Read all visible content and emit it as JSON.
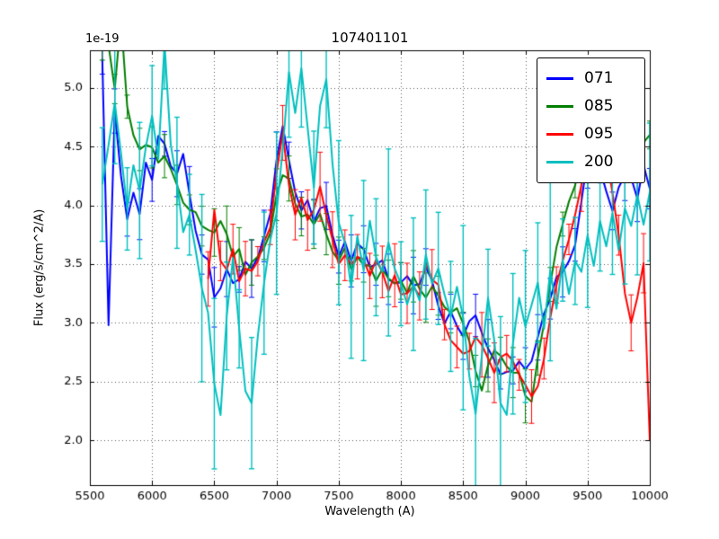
{
  "chart_data": {
    "type": "line",
    "title": "107401101",
    "xlabel": "Wavelength (A)",
    "ylabel": "Flux (erg/s/cm^2/A)",
    "offset_label": "1e-19",
    "xlim": [
      5500,
      10000
    ],
    "ylim": [
      1.62,
      5.32
    ],
    "xticks": [
      "5500",
      "6000",
      "6500",
      "7000",
      "7500",
      "8000",
      "8500",
      "9000",
      "9500",
      "10000"
    ],
    "yticks": [
      "2.0",
      "2.5",
      "3.0",
      "3.5",
      "4.0",
      "4.5",
      "5.0"
    ],
    "grid": true,
    "grid_style": "dotted",
    "legend_position": "upper right",
    "x_step": 50,
    "series": [
      {
        "name": "071",
        "color": "#0000ff",
        "x_start": 5600,
        "err": 0.17,
        "jitter": 0.1,
        "values": [
          5.2,
          2.95,
          4.85,
          4.3,
          3.85,
          4.15,
          3.95,
          4.4,
          4.2,
          4.6,
          4.5,
          4.3,
          4.25,
          4.4,
          4.1,
          3.75,
          3.6,
          3.5,
          3.2,
          3.25,
          3.45,
          3.3,
          3.4,
          3.55,
          3.45,
          3.6,
          3.7,
          3.9,
          4.35,
          4.7,
          4.4,
          4.1,
          3.95,
          4.05,
          3.9,
          4.0,
          3.95,
          3.7,
          3.6,
          3.65,
          3.55,
          3.7,
          3.6,
          3.5,
          3.45,
          3.5,
          3.4,
          3.35,
          3.3,
          3.4,
          3.35,
          3.3,
          3.45,
          3.35,
          3.1,
          3.0,
          3.1,
          3.0,
          2.9,
          3.0,
          3.05,
          2.9,
          2.75,
          2.7,
          2.6,
          2.55,
          2.6,
          2.65,
          2.6,
          2.7,
          2.9,
          3.1,
          3.2,
          3.35,
          3.45,
          3.55,
          3.65,
          4.0,
          4.4,
          4.6,
          4.35,
          4.1,
          4.0,
          4.2,
          4.3,
          4.2,
          4.05,
          4.3,
          4.1
        ]
      },
      {
        "name": "085",
        "color": "#007f00",
        "x_start": 5600,
        "err": 0.16,
        "jitter": 0.09,
        "values": [
          5.4,
          5.35,
          4.95,
          5.6,
          4.85,
          4.6,
          4.5,
          4.55,
          4.5,
          4.4,
          4.45,
          4.35,
          4.2,
          4.05,
          3.95,
          3.9,
          3.85,
          3.8,
          3.75,
          3.9,
          3.8,
          3.55,
          3.6,
          3.4,
          3.5,
          3.6,
          3.65,
          3.8,
          4.1,
          4.3,
          4.2,
          4.0,
          3.95,
          3.9,
          3.85,
          3.95,
          3.8,
          3.65,
          3.55,
          3.6,
          3.5,
          3.55,
          3.45,
          3.5,
          3.4,
          3.45,
          3.35,
          3.3,
          3.35,
          3.3,
          3.4,
          3.3,
          3.25,
          3.3,
          3.2,
          3.1,
          3.05,
          3.1,
          3.0,
          2.85,
          2.6,
          2.45,
          2.65,
          2.75,
          2.7,
          2.6,
          2.55,
          2.6,
          2.4,
          2.35,
          2.7,
          3.0,
          3.3,
          3.6,
          3.8,
          4.0,
          4.2,
          4.4,
          4.55,
          4.7,
          4.6,
          4.5,
          4.55,
          4.6,
          4.5,
          4.55,
          4.6,
          4.55,
          4.6
        ]
      },
      {
        "name": "095",
        "color": "#ff0000",
        "x_start": 6450,
        "err": 0.2,
        "jitter": 0.1,
        "values": [
          3.4,
          4.0,
          3.55,
          3.5,
          3.6,
          3.4,
          3.5,
          3.45,
          3.55,
          3.65,
          3.85,
          4.3,
          4.6,
          4.2,
          3.95,
          4.05,
          3.9,
          4.0,
          4.2,
          3.95,
          3.7,
          3.5,
          3.6,
          3.45,
          3.55,
          3.5,
          3.4,
          3.5,
          3.4,
          3.3,
          3.4,
          3.2,
          3.3,
          3.35,
          3.25,
          3.5,
          3.4,
          3.3,
          3.0,
          2.9,
          2.8,
          2.7,
          2.8,
          2.9,
          2.8,
          2.7,
          2.6,
          2.7,
          2.75,
          2.7,
          2.6,
          2.5,
          2.35,
          2.45,
          2.7,
          3.0,
          3.3,
          3.55,
          3.7,
          3.9,
          4.2,
          4.45,
          4.6,
          4.55,
          4.4,
          4.1,
          3.7,
          3.3,
          3.0,
          3.2,
          3.5,
          2.0
        ]
      },
      {
        "name": "200",
        "color": "#00bfbf",
        "x_start": 5600,
        "err": 0.55,
        "jitter": 0.18,
        "values": [
          4.1,
          4.5,
          4.9,
          4.4,
          3.95,
          4.3,
          4.1,
          4.5,
          4.7,
          4.4,
          5.45,
          4.6,
          4.2,
          3.8,
          4.0,
          3.6,
          3.3,
          3.0,
          2.4,
          2.3,
          3.1,
          3.5,
          3.0,
          2.45,
          2.3,
          2.9,
          3.4,
          3.7,
          4.0,
          4.4,
          5.1,
          4.7,
          5.2,
          4.6,
          4.2,
          4.9,
          5.1,
          4.3,
          3.9,
          3.6,
          3.3,
          3.7,
          3.5,
          3.8,
          3.6,
          3.4,
          3.7,
          3.5,
          3.3,
          3.1,
          3.4,
          3.2,
          3.5,
          3.3,
          3.4,
          3.2,
          3.0,
          3.3,
          3.1,
          2.6,
          2.3,
          2.8,
          3.2,
          2.9,
          2.3,
          2.25,
          2.8,
          3.2,
          2.9,
          3.1,
          3.3,
          3.0,
          3.4,
          3.2,
          3.5,
          3.3,
          3.6,
          3.4,
          3.7,
          3.5,
          3.8,
          3.6,
          3.9,
          3.7,
          4.0,
          3.8,
          4.1,
          3.9,
          4.2
        ]
      }
    ]
  }
}
